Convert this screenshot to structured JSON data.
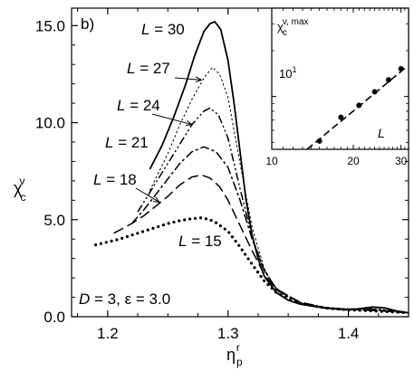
{
  "chart_data": [
    {
      "type": "line",
      "panel_label": "b)",
      "xlabel": {
        "base": "η",
        "sup": "r",
        "sub": "p"
      },
      "ylabel": {
        "base": "χ",
        "sup": "v",
        "sub": "c"
      },
      "xlim": [
        1.17,
        1.45
      ],
      "ylim": [
        0,
        15.9
      ],
      "xticks": [
        1.2,
        1.3,
        1.4
      ],
      "xtick_labels": [
        "1.2",
        "1.3",
        "1.4"
      ],
      "yticks": [
        0,
        5,
        10,
        15
      ],
      "ytick_labels": [
        "0.0",
        "5.0",
        "10.0",
        "15.0"
      ],
      "annotation": {
        "d_var": "D",
        "d_val": " = 3, ",
        "eps_var": "ε",
        "eps_val": " = 3.0"
      },
      "series": [
        {
          "name": "L = 30",
          "style": "solid",
          "dash": "",
          "x": [
            1.235,
            1.245,
            1.255,
            1.265,
            1.272,
            1.28,
            1.285,
            1.289,
            1.294,
            1.3,
            1.305,
            1.31,
            1.315,
            1.32,
            1.325,
            1.33,
            1.34,
            1.35,
            1.36,
            1.38,
            1.4,
            1.41,
            1.42,
            1.43,
            1.44,
            1.45
          ],
          "y": [
            7.6,
            8.8,
            10.3,
            12.0,
            13.4,
            14.7,
            15.1,
            15.2,
            14.8,
            13.2,
            11.0,
            8.5,
            6.0,
            4.2,
            3.0,
            2.1,
            1.25,
            0.85,
            0.65,
            0.45,
            0.35,
            0.42,
            0.5,
            0.45,
            0.3,
            0.2
          ]
        },
        {
          "name": "L = 27",
          "style": "dotted",
          "dash": "2.5 2.5",
          "x": [
            1.235,
            1.25,
            1.26,
            1.27,
            1.28,
            1.287,
            1.293,
            1.3,
            1.31,
            1.32,
            1.33,
            1.34,
            1.36,
            1.38,
            1.4,
            1.42,
            1.44,
            1.45
          ],
          "y": [
            6.5,
            8.4,
            9.9,
            11.2,
            12.3,
            12.85,
            12.5,
            11.3,
            7.9,
            4.6,
            2.5,
            1.35,
            0.7,
            0.45,
            0.4,
            0.42,
            0.3,
            0.2
          ]
        },
        {
          "name": "L = 24",
          "style": "dash-dot-dot",
          "dash": "9 3 2 3 2 3",
          "x": [
            1.225,
            1.24,
            1.25,
            1.26,
            1.27,
            1.28,
            1.285,
            1.292,
            1.3,
            1.31,
            1.32,
            1.33,
            1.34,
            1.36,
            1.38,
            1.4,
            1.42,
            1.44,
            1.45
          ],
          "y": [
            5.4,
            6.9,
            7.9,
            8.9,
            9.9,
            10.6,
            10.75,
            10.4,
            9.2,
            6.6,
            4.1,
            2.4,
            1.45,
            0.7,
            0.45,
            0.4,
            0.38,
            0.28,
            0.2
          ]
        },
        {
          "name": "L = 21",
          "style": "dash-dot",
          "dash": "10 3 3 3",
          "x": [
            1.22,
            1.23,
            1.24,
            1.25,
            1.26,
            1.27,
            1.28,
            1.29,
            1.3,
            1.31,
            1.32,
            1.33,
            1.34,
            1.36,
            1.38,
            1.4,
            1.42,
            1.45
          ],
          "y": [
            4.8,
            5.5,
            6.3,
            7.1,
            7.9,
            8.5,
            8.75,
            8.5,
            7.7,
            6.0,
            4.0,
            2.4,
            1.45,
            0.7,
            0.45,
            0.38,
            0.35,
            0.2
          ]
        },
        {
          "name": "L = 18",
          "style": "dashed",
          "dash": "12 5",
          "x": [
            1.205,
            1.22,
            1.23,
            1.24,
            1.25,
            1.26,
            1.27,
            1.278,
            1.285,
            1.293,
            1.3,
            1.31,
            1.32,
            1.33,
            1.34,
            1.36,
            1.38,
            1.4,
            1.42,
            1.45
          ],
          "y": [
            4.3,
            4.8,
            5.2,
            5.7,
            6.2,
            6.8,
            7.2,
            7.3,
            7.15,
            6.7,
            6.0,
            4.7,
            3.4,
            2.2,
            1.4,
            0.75,
            0.48,
            0.38,
            0.32,
            0.2
          ]
        },
        {
          "name": "L = 15",
          "style": "dotted-bold",
          "dash": "0 6",
          "x": [
            1.19,
            1.2,
            1.21,
            1.22,
            1.23,
            1.24,
            1.25,
            1.26,
            1.27,
            1.278,
            1.285,
            1.29,
            1.3,
            1.31,
            1.32,
            1.33,
            1.34,
            1.36,
            1.38,
            1.4,
            1.42,
            1.45
          ],
          "y": [
            3.7,
            3.85,
            4.0,
            4.2,
            4.4,
            4.6,
            4.8,
            4.95,
            5.05,
            5.1,
            5.0,
            4.85,
            4.4,
            3.6,
            2.7,
            1.85,
            1.25,
            0.7,
            0.45,
            0.35,
            0.3,
            0.2
          ]
        }
      ],
      "labels": [
        {
          "var": "L",
          "val": " = 30"
        },
        {
          "var": "L",
          "val": " = 27"
        },
        {
          "var": "L",
          "val": " = 24"
        },
        {
          "var": "L",
          "val": " = 21"
        },
        {
          "var": "L",
          "val": " = 18"
        },
        {
          "var": "L",
          "val": " = 15"
        }
      ]
    },
    {
      "type": "scatter",
      "inset": true,
      "xscale": "log",
      "yscale": "log",
      "xlim": [
        10,
        32
      ],
      "ylim": [
        4.5,
        38
      ],
      "xticks": [
        10,
        20,
        30
      ],
      "xtick_labels": [
        "10",
        "20",
        "30"
      ],
      "yticks": [
        10
      ],
      "ytick_labels": {
        "base": "10",
        "sup": "1"
      },
      "ylabel": {
        "base": "χ",
        "sup": "v, max",
        "sub": "c"
      },
      "xlabel": "L",
      "points": {
        "x": [
          15,
          18,
          21,
          24,
          27,
          30
        ],
        "y": [
          5.1,
          7.3,
          8.75,
          10.75,
          12.85,
          15.2
        ]
      },
      "fit": {
        "style": "dashed",
        "x": [
          13.5,
          31.0
        ],
        "y": [
          4.5,
          15.3
        ]
      }
    }
  ]
}
